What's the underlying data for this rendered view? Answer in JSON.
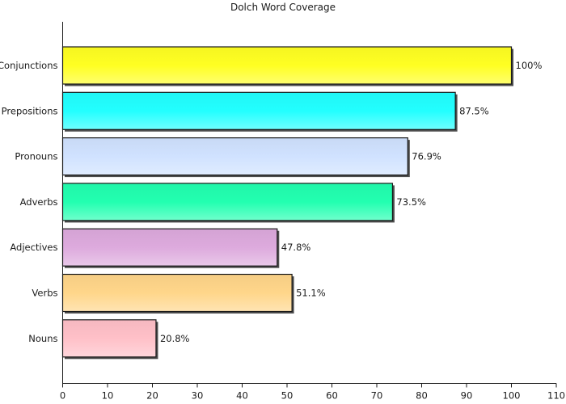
{
  "chart_data": {
    "type": "bar",
    "orientation": "horizontal",
    "title": "Dolch Word Coverage",
    "xlabel": "",
    "ylabel": "",
    "xlim": [
      0,
      110
    ],
    "x_ticks": [
      0,
      10,
      20,
      30,
      40,
      50,
      60,
      70,
      80,
      90,
      100,
      110
    ],
    "grid": false,
    "legend": "none",
    "categories": [
      "Conjunctions",
      "Prepositions",
      "Pronouns",
      "Adverbs",
      "Adjectives",
      "Verbs",
      "Nouns"
    ],
    "values": [
      100,
      87.5,
      76.9,
      73.5,
      47.8,
      51.1,
      20.8
    ],
    "data_labels": [
      "100%",
      "87.5%",
      "76.9%",
      "73.5%",
      "47.8%",
      "51.1%",
      "20.8%"
    ],
    "colors": [
      "#ffff22",
      "#22ffff",
      "#d0e2ff",
      "#22ffb0",
      "#ddaadd",
      "#ffd68a",
      "#ffc0c8"
    ]
  }
}
